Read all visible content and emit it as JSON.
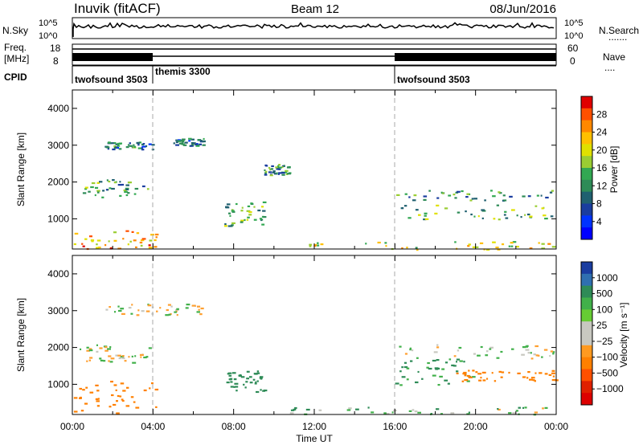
{
  "header": {
    "station": "Inuvik (fitACF)",
    "beam": "Beam 12",
    "date": "08/Jun/2016"
  },
  "nsky_panel": {
    "left_label": "N.Sky",
    "left_ticks": [
      "10^5",
      "10^0"
    ],
    "right_ticks": [
      "10^5",
      "10^0"
    ],
    "right_label": "N.Search",
    "right_marker": "......."
  },
  "freq_panel": {
    "left_label_1": "Freq.",
    "left_label_2": "[MHz]",
    "left_ticks": [
      "18",
      "8"
    ],
    "right_ticks": [
      "60",
      "0"
    ],
    "right_label": "Nave",
    "right_marker": "...."
  },
  "cpid_panel": {
    "label": "CPID",
    "programs": [
      {
        "name": "twofsound 3503",
        "start_hour": 0,
        "end_hour": 4
      },
      {
        "name": "themis 3300",
        "start_hour": 4,
        "end_hour": 16
      },
      {
        "name": "twofsound 3503",
        "start_hour": 16,
        "end_hour": 24
      }
    ]
  },
  "chart_data": [
    {
      "type": "heatmap",
      "title": "",
      "xlabel": "Time UT",
      "ylabel": "Slant Range [km]",
      "xlim": [
        0,
        24
      ],
      "ylim": [
        180,
        4500
      ],
      "x_ticks": [
        "00:00",
        "04:00",
        "08:00",
        "12:00",
        "16:00",
        "20:00",
        "00:00"
      ],
      "y_ticks": [
        1000,
        2000,
        3000,
        4000
      ],
      "grid": false,
      "colorbar": {
        "label": "Power [dB]",
        "ticks": [
          "28",
          "24",
          "20",
          "16",
          "12",
          "8",
          "4"
        ],
        "colors": [
          "#e00000",
          "#ff5000",
          "#ff8800",
          "#ffc000",
          "#e0e000",
          "#9acd32",
          "#32a852",
          "#2e8b57",
          "#206070",
          "#1a3d9f",
          "#0033ff",
          "#0000ff"
        ]
      },
      "scatter_regions": [
        {
          "t_start": 0.2,
          "t_end": 3.8,
          "r_start": 1600,
          "r_end": 2100,
          "value": 12
        },
        {
          "t_start": 1.5,
          "t_end": 4.0,
          "r_start": 2900,
          "r_end": 3100,
          "value": 10
        },
        {
          "t_start": 0.0,
          "t_end": 4.2,
          "r_start": 200,
          "r_end": 700,
          "value": 22
        },
        {
          "t_start": 5.0,
          "t_end": 6.5,
          "r_start": 3000,
          "r_end": 3200,
          "value": 9
        },
        {
          "t_start": 9.5,
          "t_end": 10.8,
          "r_start": 2200,
          "r_end": 2500,
          "value": 11
        },
        {
          "t_start": 7.5,
          "t_end": 9.5,
          "r_start": 800,
          "r_end": 1500,
          "value": 13
        },
        {
          "t_start": 16.0,
          "t_end": 24.0,
          "r_start": 1500,
          "r_end": 1800,
          "value": 11
        },
        {
          "t_start": 16.0,
          "t_end": 24.0,
          "r_start": 1000,
          "r_end": 1400,
          "value": 14
        },
        {
          "t_start": 10.5,
          "t_end": 24.0,
          "r_start": 180,
          "r_end": 400,
          "value": 18
        }
      ]
    },
    {
      "type": "heatmap",
      "title": "",
      "xlabel": "Time UT",
      "ylabel": "Slant Range [km]",
      "xlim": [
        0,
        24
      ],
      "ylim": [
        180,
        4500
      ],
      "x_ticks": [
        "00:00",
        "04:00",
        "08:00",
        "12:00",
        "16:00",
        "20:00",
        "00:00"
      ],
      "y_ticks": [
        1000,
        2000,
        3000,
        4000
      ],
      "grid": false,
      "colorbar": {
        "label": "Velocity [m s⁻¹]",
        "ticks": [
          "1000",
          "500",
          "100",
          "25",
          "−25",
          "−100",
          "−500",
          "−1000"
        ],
        "colors": [
          "#1a3da0",
          "#2f6fb0",
          "#2e8b57",
          "#41b04a",
          "#66cc33",
          "#c8c8c0",
          "#c8c8c0",
          "#ff9a20",
          "#ff8000",
          "#ff5000",
          "#e02000",
          "#dd0000"
        ]
      },
      "scatter_regions": [
        {
          "t_start": 0.2,
          "t_end": 3.8,
          "r_start": 1600,
          "r_end": 2100,
          "value": 0
        },
        {
          "t_start": 1.5,
          "t_end": 6.5,
          "r_start": 2900,
          "r_end": 3200,
          "value": 0
        },
        {
          "t_start": 0.0,
          "t_end": 4.2,
          "r_start": 200,
          "r_end": 1100,
          "value": -300
        },
        {
          "t_start": 7.5,
          "t_end": 9.5,
          "r_start": 800,
          "r_end": 1400,
          "value": 200
        },
        {
          "t_start": 16.0,
          "t_end": 20.0,
          "r_start": 1000,
          "r_end": 1700,
          "value": 150
        },
        {
          "t_start": 19.0,
          "t_end": 24.0,
          "r_start": 1100,
          "r_end": 1400,
          "value": -300
        },
        {
          "t_start": 16.0,
          "t_end": 24.0,
          "r_start": 1700,
          "r_end": 2100,
          "value": 0
        },
        {
          "t_start": 10.5,
          "t_end": 24.0,
          "r_start": 180,
          "r_end": 400,
          "value": 60
        }
      ]
    }
  ]
}
